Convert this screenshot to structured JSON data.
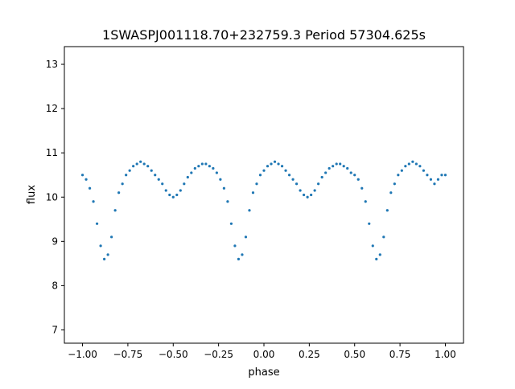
{
  "chart_data": {
    "type": "scatter",
    "title": "1SWASPJ001118.70+232759.3 Period 57304.625s",
    "xlabel": "phase",
    "ylabel": "flux",
    "xlim": [
      -1.1,
      1.1
    ],
    "ylim": [
      6.7,
      13.4
    ],
    "x_ticks": [
      {
        "value": -1.0,
        "label": "−1.00"
      },
      {
        "value": -0.75,
        "label": "−0.75"
      },
      {
        "value": -0.5,
        "label": "−0.50"
      },
      {
        "value": -0.25,
        "label": "−0.25"
      },
      {
        "value": 0.0,
        "label": "0.00"
      },
      {
        "value": 0.25,
        "label": "0.25"
      },
      {
        "value": 0.5,
        "label": "0.50"
      },
      {
        "value": 0.75,
        "label": "0.75"
      },
      {
        "value": 1.0,
        "label": "1.00"
      }
    ],
    "y_ticks": [
      {
        "value": 7,
        "label": "7"
      },
      {
        "value": 8,
        "label": "8"
      },
      {
        "value": 9,
        "label": "9"
      },
      {
        "value": 10,
        "label": "10"
      },
      {
        "value": 11,
        "label": "11"
      },
      {
        "value": 12,
        "label": "12"
      },
      {
        "value": 13,
        "label": "13"
      }
    ],
    "grid": false,
    "point_color": "#1f77b4",
    "series": [
      {
        "x": [
          -1.0,
          -0.98,
          -0.96,
          -0.94,
          -0.92,
          -0.9,
          -0.88,
          -0.86,
          -0.84,
          -0.82,
          -0.8,
          -0.78,
          -0.76,
          -0.74,
          -0.72,
          -0.7,
          -0.68,
          -0.66,
          -0.64,
          -0.62,
          -0.6,
          -0.58,
          -0.56,
          -0.54,
          -0.52,
          -0.5,
          -0.48,
          -0.46,
          -0.44,
          -0.42,
          -0.4,
          -0.38,
          -0.36,
          -0.34,
          -0.32,
          -0.3,
          -0.28,
          -0.26,
          -0.24,
          -0.22,
          -0.2,
          -0.18,
          -0.16,
          -0.14,
          -0.12,
          -0.1,
          -0.08,
          -0.06,
          -0.04,
          -0.02,
          0.0,
          0.02,
          0.04,
          0.06,
          0.08,
          0.1,
          0.12,
          0.14,
          0.16,
          0.18,
          0.2,
          0.22,
          0.24,
          0.26,
          0.28,
          0.3,
          0.32,
          0.34,
          0.36,
          0.38,
          0.4,
          0.42,
          0.44,
          0.46,
          0.48,
          0.5,
          0.52,
          0.54,
          0.56,
          0.58,
          0.6,
          0.62,
          0.64,
          0.66,
          0.68,
          0.7,
          0.72,
          0.74,
          0.76,
          0.78,
          0.8,
          0.82,
          0.84,
          0.86,
          0.88,
          0.9,
          0.92,
          0.94,
          0.96,
          0.98,
          1.0
        ],
        "y": [
          10.5,
          10.4,
          10.2,
          9.9,
          9.4,
          8.9,
          8.6,
          8.7,
          9.1,
          9.7,
          10.1,
          10.3,
          10.5,
          10.6,
          10.7,
          10.75,
          10.8,
          10.75,
          10.7,
          10.6,
          10.5,
          10.4,
          10.3,
          10.15,
          10.05,
          10.0,
          10.05,
          10.15,
          10.3,
          10.45,
          10.55,
          10.65,
          10.7,
          10.75,
          10.75,
          10.7,
          10.65,
          10.55,
          10.4,
          10.2,
          9.9,
          9.4,
          8.9,
          8.6,
          8.7,
          9.1,
          9.7,
          10.1,
          10.3,
          10.5,
          10.6,
          10.7,
          10.75,
          10.8,
          10.75,
          10.7,
          10.6,
          10.5,
          10.4,
          10.3,
          10.15,
          10.05,
          10.0,
          10.05,
          10.15,
          10.3,
          10.45,
          10.55,
          10.65,
          10.7,
          10.75,
          10.75,
          10.7,
          10.65,
          10.55,
          10.5,
          10.4,
          10.2,
          9.9,
          9.4,
          8.9,
          8.6,
          8.7,
          9.1,
          9.7,
          10.1,
          10.3,
          10.5,
          10.6,
          10.7,
          10.75,
          10.8,
          10.75,
          10.7,
          10.6,
          10.5,
          10.4,
          10.3,
          10.4,
          10.5,
          10.5
        ],
        "note_free": true
      }
    ]
  }
}
